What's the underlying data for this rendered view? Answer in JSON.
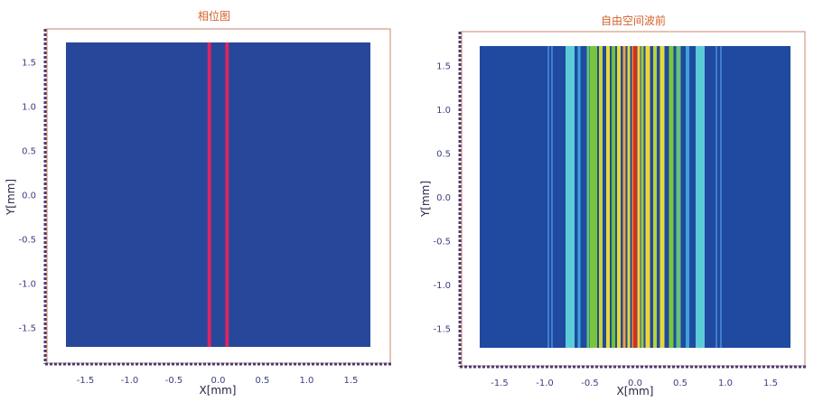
{
  "chart_data": [
    {
      "type": "heatmap",
      "title": "相位图",
      "xlabel": "X[mm]",
      "ylabel": "Y[mm]",
      "xlim": [
        -1.75,
        1.75
      ],
      "ylim": [
        -1.75,
        1.75
      ],
      "x_ticks": [
        "-1.5",
        "-1.0",
        "-0.5",
        "0.0",
        "0.5",
        "1.0",
        "1.5"
      ],
      "y_ticks": [
        "1.5",
        "1.0",
        "0.5",
        "0.0",
        "-0.5",
        "-1.0",
        "-1.5"
      ],
      "background_color": "#27479a",
      "bands": [
        {
          "x_center": -0.1,
          "width": 0.04,
          "color": "#e0245e"
        },
        {
          "x_center": 0.1,
          "width": 0.04,
          "color": "#e0245e"
        }
      ]
    },
    {
      "type": "heatmap",
      "title": "自由空间波前",
      "xlabel": "X[mm]",
      "ylabel": "Y[mm]",
      "xlim": [
        -1.75,
        1.75
      ],
      "ylim": [
        -1.75,
        1.75
      ],
      "x_ticks": [
        "-1.5",
        "-1.0",
        "-0.5",
        "0.0",
        "0.5",
        "1.0",
        "1.5"
      ],
      "y_ticks": [
        "1.5",
        "1.0",
        "0.5",
        "0.0",
        "-0.5",
        "-1.0",
        "-1.5"
      ],
      "background_color": "#1f4aa0",
      "bands": [
        {
          "x_center": -0.96,
          "width": 0.02,
          "color": "#3f7ecf"
        },
        {
          "x_center": -0.92,
          "width": 0.02,
          "color": "#3f7ecf"
        },
        {
          "x_center": -0.72,
          "width": 0.1,
          "color": "#5ccdd8"
        },
        {
          "x_center": -0.62,
          "width": 0.03,
          "color": "#3fa2d8"
        },
        {
          "x_center": -0.52,
          "width": 0.03,
          "color": "#66c07a"
        },
        {
          "x_center": -0.46,
          "width": 0.08,
          "color": "#7bc53a"
        },
        {
          "x_center": -0.38,
          "width": 0.04,
          "color": "#c7d33a"
        },
        {
          "x_center": -0.3,
          "width": 0.04,
          "color": "#e8d838"
        },
        {
          "x_center": -0.24,
          "width": 0.04,
          "color": "#6fc13a"
        },
        {
          "x_center": -0.18,
          "width": 0.04,
          "color": "#e8d838"
        },
        {
          "x_center": -0.12,
          "width": 0.03,
          "color": "#f2a23a"
        },
        {
          "x_center": -0.07,
          "width": 0.03,
          "color": "#e8d838"
        },
        {
          "x_center": -0.02,
          "width": 0.03,
          "color": "#ee8c2a"
        },
        {
          "x_center": 0.0,
          "width": 0.04,
          "color": "#d63020"
        },
        {
          "x_center": 0.04,
          "width": 0.03,
          "color": "#f6d23a"
        },
        {
          "x_center": 0.08,
          "width": 0.03,
          "color": "#9ccc3a"
        },
        {
          "x_center": 0.14,
          "width": 0.05,
          "color": "#f2d438"
        },
        {
          "x_center": 0.22,
          "width": 0.04,
          "color": "#b8d23a"
        },
        {
          "x_center": 0.3,
          "width": 0.05,
          "color": "#e8d838"
        },
        {
          "x_center": 0.4,
          "width": 0.05,
          "color": "#7bc53a"
        },
        {
          "x_center": 0.48,
          "width": 0.05,
          "color": "#66c07a"
        },
        {
          "x_center": 0.58,
          "width": 0.04,
          "color": "#3fa2d8"
        },
        {
          "x_center": 0.72,
          "width": 0.1,
          "color": "#5ccdd8"
        },
        {
          "x_center": 0.9,
          "width": 0.02,
          "color": "#3f7ecf"
        },
        {
          "x_center": 0.95,
          "width": 0.02,
          "color": "#3f7ecf"
        }
      ]
    }
  ]
}
